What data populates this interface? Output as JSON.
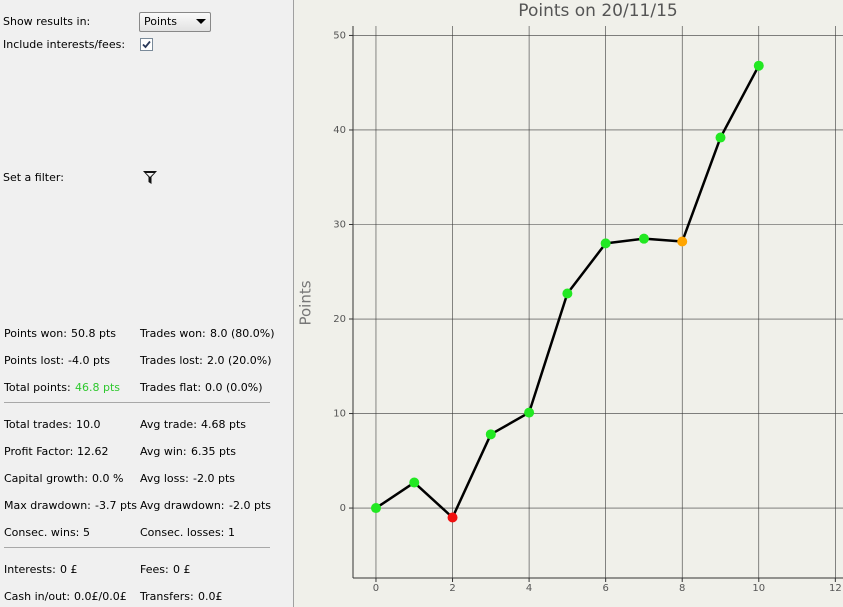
{
  "panel": {
    "show_results_label": "Show results in:",
    "show_results_value": "Points",
    "include_fees_label": "Include interests/fees:",
    "include_fees_checked": true,
    "filter_label": "Set a filter:",
    "stats": [
      [
        [
          {
            "label": "Points won:",
            "value": "50.8 pts"
          },
          {
            "label": "Trades won:",
            "value": "8.0 (80.0%)"
          }
        ],
        [
          {
            "label": "Points lost:",
            "value": "-4.0 pts"
          },
          {
            "label": "Trades lost:",
            "value": "2.0 (20.0%)"
          }
        ],
        [
          {
            "label": "Total points:",
            "value": "46.8 pts",
            "value_color": "#2ec82e"
          },
          {
            "label": "Trades flat:",
            "value": "0.0 (0.0%)"
          }
        ]
      ],
      [
        [
          {
            "label": "Total trades:",
            "value": "10.0"
          },
          {
            "label": "Avg trade:",
            "value": "4.68 pts"
          }
        ],
        [
          {
            "label": "Profit Factor:",
            "value": "12.62"
          },
          {
            "label": "Avg win:",
            "value": "6.35 pts"
          }
        ],
        [
          {
            "label": "Capital growth:",
            "value": "0.0 %"
          },
          {
            "label": "Avg loss:",
            "value": "-2.0 pts"
          }
        ],
        [
          {
            "label": "Max drawdown:",
            "value": "-3.7 pts"
          },
          {
            "label": "Avg drawdown:",
            "value": "-2.0 pts"
          }
        ],
        [
          {
            "label": "Consec. wins:",
            "value": "5"
          },
          {
            "label": "Consec. losses:",
            "value": "1"
          }
        ]
      ],
      [
        [
          {
            "label": "Interests:",
            "value": "0 £"
          },
          {
            "label": "Fees:",
            "value": "0 £"
          }
        ],
        [
          {
            "label": "Cash in/out:",
            "value": "0.0£/0.0£"
          },
          {
            "label": "Transfers:",
            "value": "0.0£"
          }
        ]
      ]
    ]
  },
  "chart_data": {
    "type": "line",
    "title": "Points on 20/11/15",
    "y_label": "Points",
    "x": [
      0,
      1,
      2,
      3,
      4,
      5,
      6,
      7,
      8,
      9,
      10
    ],
    "series": [
      {
        "name": "Points",
        "color": "#000000",
        "values": [
          0,
          2.7,
          -1,
          7.8,
          10.1,
          22.7,
          28,
          28.5,
          28.2,
          39.2,
          46.8
        ],
        "marker_colors": [
          "#22e822",
          "#22e822",
          "#f01010",
          "#22e822",
          "#22e822",
          "#22e822",
          "#22e822",
          "#22e822",
          "#ffa500",
          "#22e822",
          "#22e822"
        ]
      }
    ],
    "xlim": [
      -0.6,
      12.2
    ],
    "ylim": [
      -7.4,
      51
    ],
    "xticks": [
      0,
      2,
      4,
      6,
      8,
      10,
      12
    ],
    "yticks": [
      0,
      10,
      20,
      30,
      40,
      50
    ],
    "grid": true
  }
}
